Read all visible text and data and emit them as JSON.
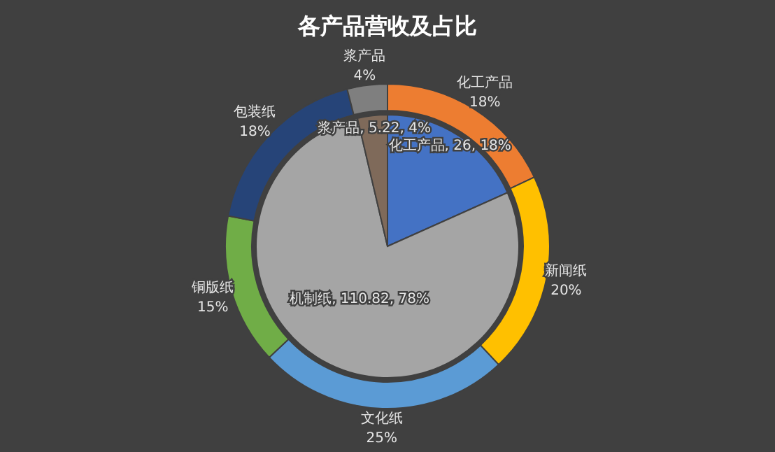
{
  "chart_data": [
    {
      "type": "donut",
      "title": "各产品营收及占比",
      "categories": [
        "化工产品",
        "新闻纸",
        "文化纸",
        "铜版纸",
        "包装纸",
        "浆产品"
      ],
      "values": [
        18,
        20,
        25,
        15,
        18,
        4
      ],
      "colors": [
        "#ed7d31",
        "#ffc000",
        "#5b9bd5",
        "#70ad47",
        "#264478",
        "#7f7f7f"
      ],
      "value_labels": [
        "18%",
        "20%",
        "25%",
        "15%",
        "18%",
        "4%"
      ]
    },
    {
      "type": "pie",
      "categories": [
        "化工产品",
        "机制纸",
        "浆产品"
      ],
      "values": [
        26,
        110.82,
        5.22
      ],
      "value_labels": [
        "26, 18%",
        "110.82, 78%",
        "5.22, 4%"
      ],
      "colors": [
        "#4472c4",
        "#a5a5a5",
        "#7f6a5a"
      ]
    }
  ]
}
